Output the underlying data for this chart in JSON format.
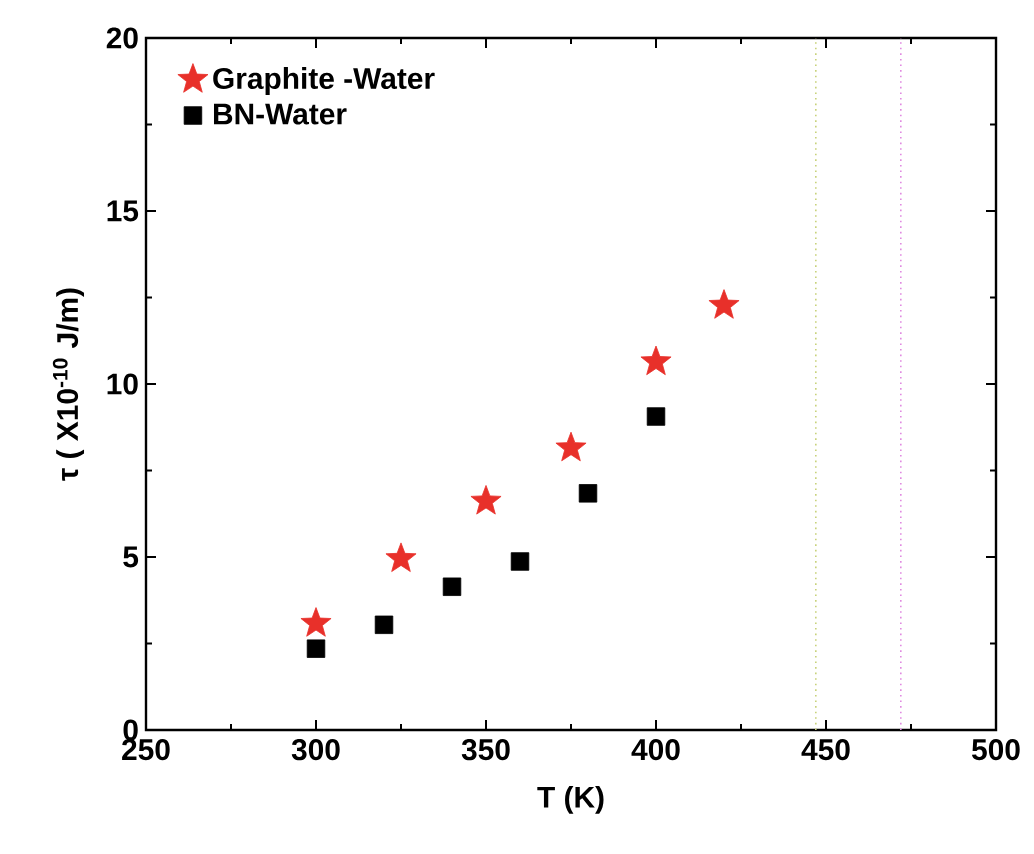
{
  "chart_data": {
    "type": "scatter",
    "xlabel": "T (K)",
    "ylabel": "τ ( X10$^{-10}$ J/m)",
    "xlim": [
      250,
      500
    ],
    "xticks": [
      250,
      300,
      350,
      400,
      450,
      500
    ],
    "ylim": [
      0,
      20
    ],
    "yticks": [
      0,
      5,
      10,
      15,
      20
    ],
    "legend": "top left",
    "grid": false,
    "series": [
      {
        "name": "Graphite -Water",
        "color": "#e8302a",
        "marker": "star",
        "x": [
          300,
          325,
          350,
          375,
          400,
          420
        ],
        "values": [
          3.08,
          4.95,
          6.61,
          8.15,
          10.64,
          12.27
        ]
      },
      {
        "name": "BN-Water",
        "color": "#000000",
        "marker": "square",
        "x": [
          300,
          320,
          340,
          360,
          380,
          400
        ],
        "values": [
          2.35,
          3.04,
          4.14,
          4.87,
          6.84,
          9.06
        ]
      }
    ],
    "ref_lines": [
      {
        "axis": "x",
        "value": 447,
        "color": "#c8d27a",
        "line_style": "dotted"
      },
      {
        "axis": "x",
        "value": 472,
        "color": "#e08ae0",
        "line_style": "dotted"
      }
    ]
  }
}
